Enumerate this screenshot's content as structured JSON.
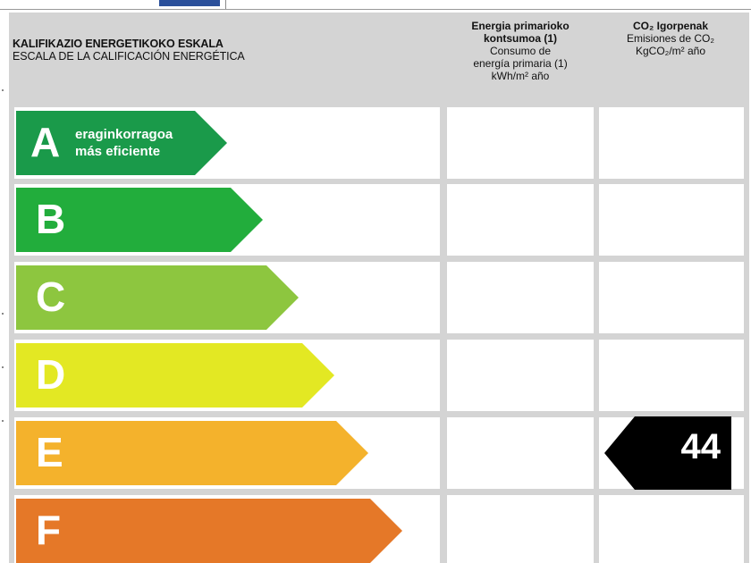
{
  "header": {
    "title_eu": "KALIFIKAZIO ENERGETIKOKO ESKALA",
    "title_es": "ESCALA DE LA CALIFICACIÓN ENERGÉTICA",
    "col_energy": {
      "line1": "Energia primarioko",
      "line2": "kontsumoa (1)",
      "line3": "Consumo de",
      "line4": "energía primaria (1)",
      "line5": "kWh/m² año"
    },
    "col_co2": {
      "line1": "CO₂ Igorpenak",
      "line2": "Emisiones de CO₂",
      "line3": "KgCO₂/m² año"
    }
  },
  "classes": [
    {
      "letter": "A",
      "color": "#1a9a4a",
      "desc1": "eraginkorragoa",
      "desc2": "más eficiente"
    },
    {
      "letter": "B",
      "color": "#22ad3c"
    },
    {
      "letter": "C",
      "color": "#8dc63f"
    },
    {
      "letter": "D",
      "color": "#e3e823"
    },
    {
      "letter": "E",
      "color": "#f4b22c"
    },
    {
      "letter": "F",
      "color": "#e57828"
    }
  ],
  "co2_rating": {
    "value": "44",
    "class": "E",
    "color": "#000000"
  }
}
